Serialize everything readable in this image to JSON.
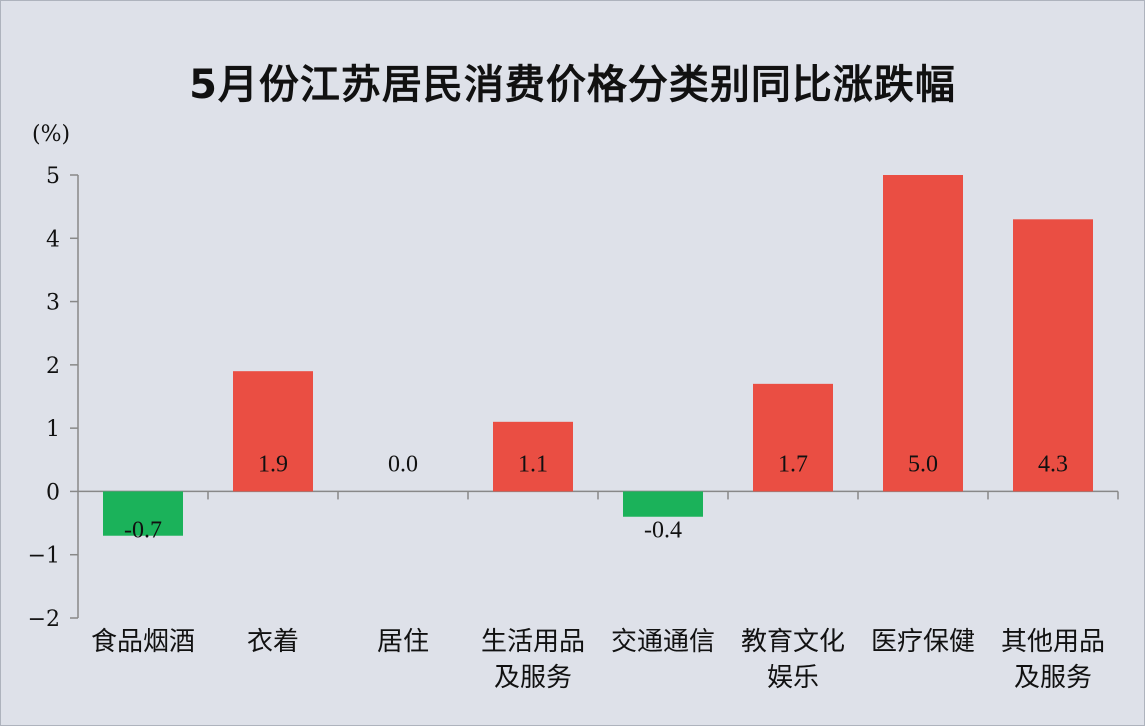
{
  "chart_data": {
    "type": "bar",
    "title": "5月份江苏居民消费价格分类别同比涨跌幅",
    "ylabel": "(%)",
    "xlabel": "",
    "ylim": [
      -2,
      5
    ],
    "yticks": [
      5,
      4,
      3,
      2,
      1,
      0,
      -1,
      -2
    ],
    "ytick_labels": [
      "5",
      "4",
      "3",
      "2",
      "1",
      "0",
      "−1",
      "−2"
    ],
    "categories": [
      [
        "食品烟酒"
      ],
      [
        "衣着"
      ],
      [
        "居住"
      ],
      [
        "生活用品",
        "及服务"
      ],
      [
        "交通通信"
      ],
      [
        "教育文化",
        "娱乐"
      ],
      [
        "医疗保健"
      ],
      [
        "其他用品",
        "及服务"
      ]
    ],
    "values": [
      -0.7,
      1.9,
      0.0,
      1.1,
      -0.4,
      1.7,
      5.0,
      4.3
    ],
    "data_labels": [
      "-0.7",
      "1.9",
      "0.0",
      "1.1",
      "-0.4",
      "1.7",
      "5.0",
      "4.3"
    ],
    "grid": false,
    "colors": {
      "positive": "#ea4e43",
      "negative": "#1bb25a",
      "axis": "#888888"
    }
  }
}
